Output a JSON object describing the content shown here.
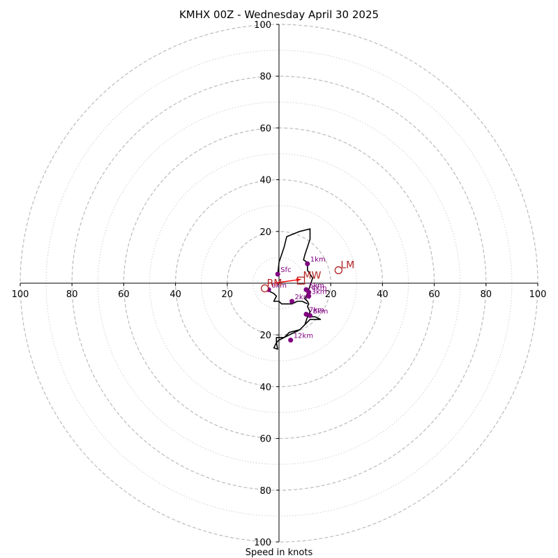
{
  "chart_data": {
    "type": "hodograph",
    "title": "KMHX 00Z - Wednesday April 30 2025",
    "xlabel": "Speed in knots",
    "range": [
      -100,
      100
    ],
    "major_rings": [
      20,
      40,
      60,
      80,
      100
    ],
    "minor_rings": [
      10,
      30,
      50,
      70,
      90
    ],
    "x_ticks": [
      -100,
      -80,
      -60,
      -40,
      -20,
      20,
      40,
      60,
      80,
      100
    ],
    "y_ticks": [
      -100,
      -80,
      -60,
      -40,
      -20,
      20,
      40,
      60,
      80,
      100
    ],
    "tick_labels": {
      "-100": "100",
      "-80": "80",
      "-60": "60",
      "-40": "40",
      "-20": "20",
      "20": "20",
      "40": "40",
      "60": "60",
      "80": "80",
      "100": "100"
    },
    "trace": [
      [
        -0.5,
        3
      ],
      [
        0,
        8
      ],
      [
        2,
        14
      ],
      [
        3,
        18
      ],
      [
        8,
        20
      ],
      [
        12,
        21
      ],
      [
        12,
        17
      ],
      [
        11,
        14
      ],
      [
        10,
        11
      ],
      [
        9.5,
        9
      ],
      [
        11,
        8
      ],
      [
        11,
        5
      ],
      [
        13,
        2
      ],
      [
        12,
        -1
      ],
      [
        11,
        -4
      ],
      [
        10,
        -6
      ],
      [
        11,
        -7
      ],
      [
        11.5,
        -8
      ],
      [
        11,
        -9
      ],
      [
        12,
        -11
      ],
      [
        11,
        -13
      ],
      [
        12,
        -13
      ],
      [
        13,
        -13
      ],
      [
        14,
        -13
      ],
      [
        16,
        -14
      ],
      [
        12,
        -14
      ],
      [
        10,
        -16
      ],
      [
        8,
        -18
      ],
      [
        4,
        -20
      ],
      [
        2,
        -21
      ],
      [
        0,
        -22
      ],
      [
        -1,
        -23
      ],
      [
        -2,
        -25
      ],
      [
        -0.5,
        -25.5
      ],
      [
        -1,
        -23
      ],
      [
        -1,
        -21
      ],
      [
        2,
        -21
      ],
      [
        4,
        -19
      ],
      [
        8,
        -18
      ],
      [
        10,
        -16
      ],
      [
        11,
        -13
      ]
    ],
    "trace_inner": [
      [
        -4,
        -3
      ],
      [
        -2,
        -4
      ],
      [
        -1,
        -5
      ],
      [
        -2,
        -7
      ],
      [
        0,
        -7
      ],
      [
        1,
        -8
      ],
      [
        3,
        -8
      ],
      [
        5,
        -8
      ],
      [
        7,
        -7
      ],
      [
        9,
        -7
      ],
      [
        11,
        -8
      ]
    ],
    "points": [
      {
        "label": "Sfc",
        "u": -0.5,
        "v": 3.5
      },
      {
        "label": "1km",
        "u": 11,
        "v": 7.5
      },
      {
        "label": "2km",
        "u": 5,
        "v": -7
      },
      {
        "label": "3km",
        "u": 11.5,
        "v": -5
      },
      {
        "label": "4km",
        "u": 11.5,
        "v": -3.5
      },
      {
        "label": "5km",
        "u": 10.5,
        "v": -2.5
      },
      {
        "label": "6km",
        "u": -4,
        "v": -2.5
      },
      {
        "label": "7km",
        "u": 10.5,
        "v": -12
      },
      {
        "label": "8km",
        "u": 12,
        "v": -12.5
      },
      {
        "label": "12km",
        "u": 4.5,
        "v": -22
      }
    ],
    "motions": [
      {
        "label": "LM",
        "u": 23,
        "v": 5,
        "marker": "circle"
      },
      {
        "label": "RM",
        "u": -5.5,
        "v": -2,
        "marker": "circle"
      },
      {
        "label": "MW",
        "u": 8.5,
        "v": 1,
        "marker": "square"
      }
    ],
    "shear_arrow": {
      "from": [
        -2,
        0
      ],
      "to": [
        8.5,
        1.5
      ]
    },
    "colors": {
      "trace": "#000000",
      "points": "#800080",
      "motion": "#b22222",
      "arrow": "#ff0000",
      "grid": "#bbbbbb"
    }
  }
}
